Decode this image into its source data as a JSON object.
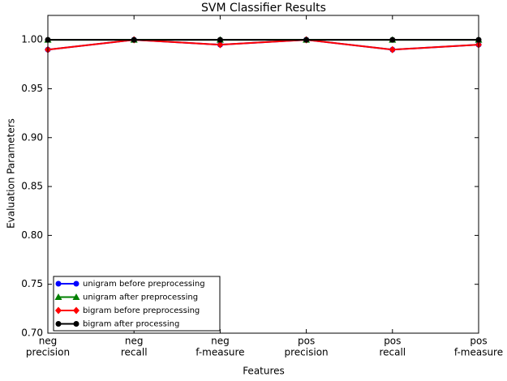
{
  "chart_data": {
    "type": "line",
    "title": "SVM Classifier Results",
    "xlabel": "Features",
    "ylabel": "Evaluation Parameters",
    "categories": [
      [
        "neg",
        "precision"
      ],
      [
        "neg",
        "recall"
      ],
      [
        "neg",
        "f-measure"
      ],
      [
        "pos",
        "precision"
      ],
      [
        "pos",
        "recall"
      ],
      [
        "pos",
        "f-measure"
      ]
    ],
    "series": [
      {
        "name": "unigram before preprocessing",
        "color": "#0000ff",
        "marker": "circle",
        "values": [
          0.99,
          1.0,
          0.995,
          1.0,
          0.99,
          0.995
        ]
      },
      {
        "name": "unigram after preprocessing",
        "color": "#008000",
        "marker": "triangle",
        "values": [
          1.0,
          1.0,
          1.0,
          1.0,
          1.0,
          1.0
        ]
      },
      {
        "name": "bigram before preprocessing",
        "color": "#ff0000",
        "marker": "diamond",
        "values": [
          0.99,
          1.0,
          0.995,
          1.0,
          0.99,
          0.995
        ]
      },
      {
        "name": "bigram after processing",
        "color": "#000000",
        "marker": "circle",
        "values": [
          1.0,
          1.0,
          1.0,
          1.0,
          1.0,
          1.0
        ]
      }
    ],
    "ylim": [
      0.7,
      1.025
    ],
    "yticks": [
      {
        "value": 0.7,
        "label": "0.70"
      },
      {
        "value": 0.75,
        "label": "0.75"
      },
      {
        "value": 0.8,
        "label": "0.80"
      },
      {
        "value": 0.85,
        "label": "0.85"
      },
      {
        "value": 0.9,
        "label": "0.90"
      },
      {
        "value": 0.95,
        "label": "0.95"
      },
      {
        "value": 1.0,
        "label": "1.00"
      }
    ],
    "legend": "lower left"
  }
}
